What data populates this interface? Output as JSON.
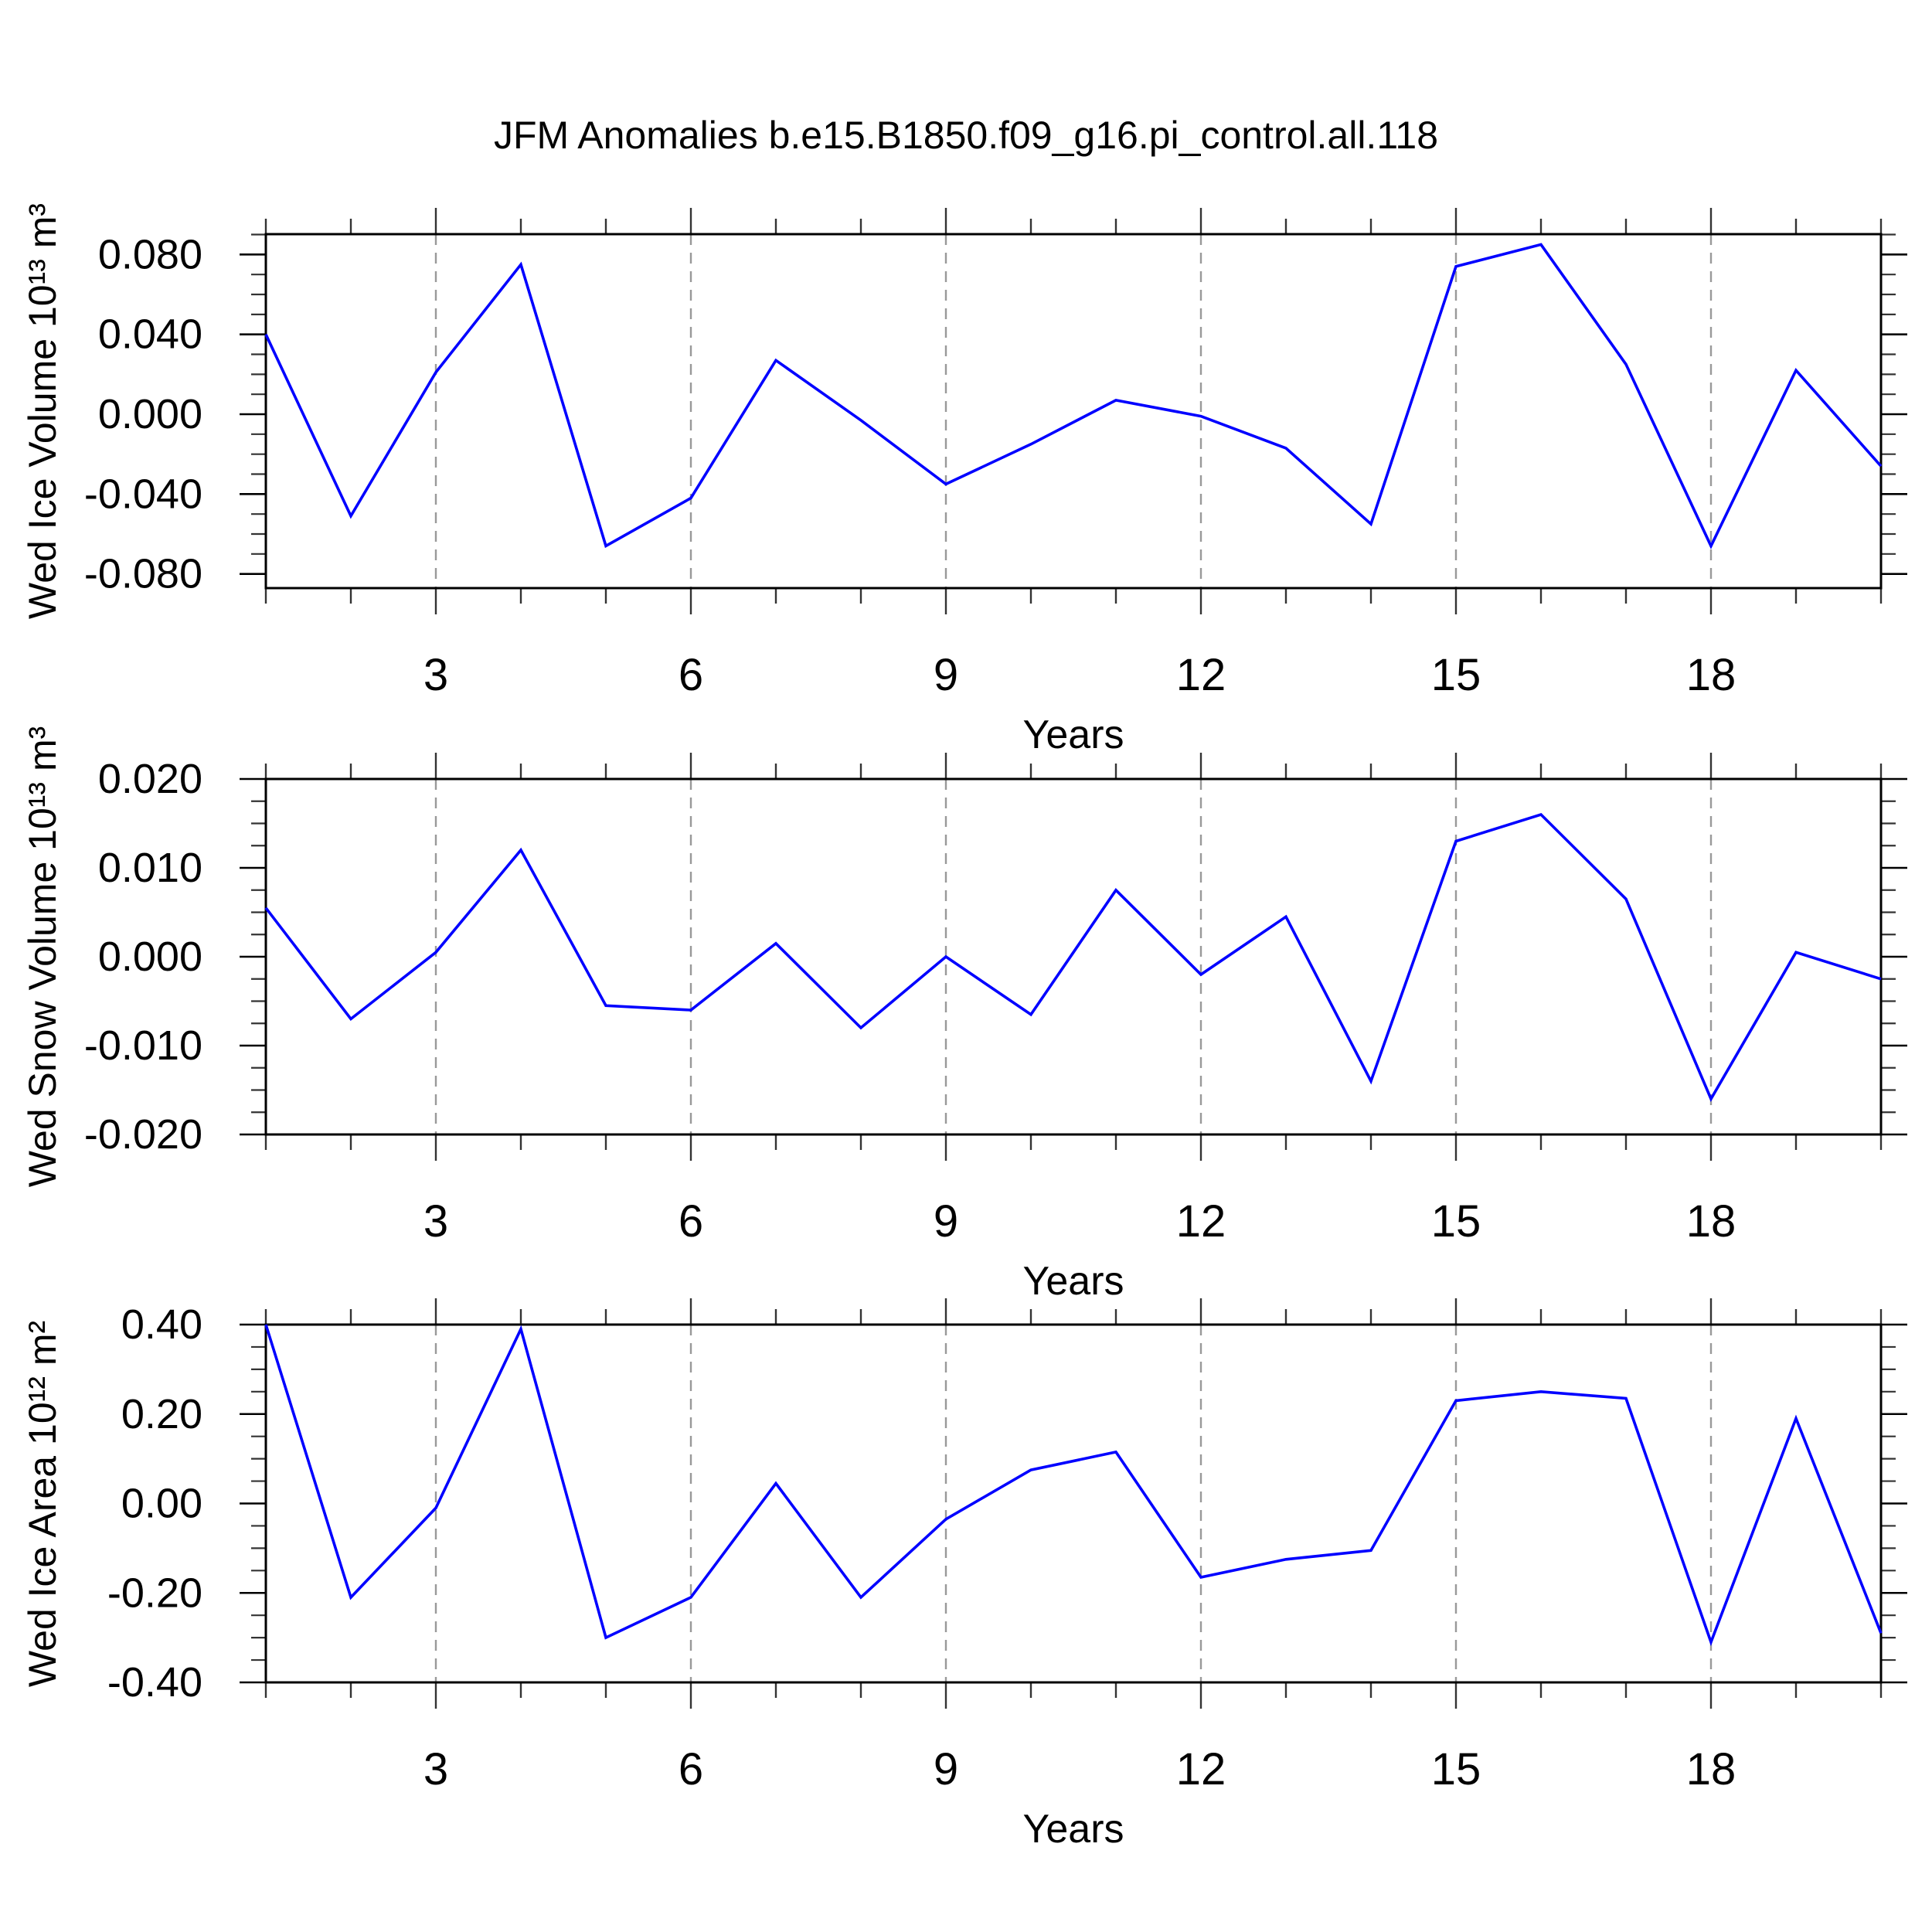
{
  "title": "JFM Anomalies b.e15.B1850.f09_g16.pi_control.all.118",
  "xlabel": "Years",
  "colors": {
    "line": "#0000ff",
    "grid": "#999999",
    "frame": "#000000",
    "tick": "#333333",
    "text": "#000000",
    "background": "#ffffff"
  },
  "chart_data": [
    {
      "type": "line",
      "ylabel": "Wed Ice Volume 10¹³ m³",
      "xlabel": "Years",
      "x": [
        1,
        2,
        3,
        4,
        5,
        6,
        7,
        8,
        9,
        10,
        11,
        12,
        13,
        14,
        15,
        16,
        17,
        18,
        19,
        20
      ],
      "values": [
        0.04,
        -0.051,
        0.021,
        0.075,
        -0.066,
        -0.042,
        0.027,
        -0.003,
        -0.035,
        -0.015,
        0.007,
        -0.001,
        -0.017,
        -0.055,
        0.074,
        0.085,
        0.025,
        -0.066,
        0.022,
        -0.026
      ],
      "ylim": [
        -0.0871,
        0.0902
      ],
      "ytick_values": [
        0.08,
        0.04,
        0.0,
        -0.04,
        -0.08
      ],
      "ytick_labels": [
        "0.080",
        "0.040",
        "0.000",
        "-0.040",
        "-0.080"
      ],
      "yminor_step": 0.01,
      "xtick_major": [
        3,
        6,
        9,
        12,
        15,
        18
      ],
      "grid_x_dashed": [
        3,
        6,
        9,
        12,
        15,
        18
      ],
      "legend": "none",
      "grid": "vertical-dashed-only"
    },
    {
      "type": "line",
      "ylabel": "Wed Snow Volume 10¹³ m³",
      "xlabel": "Years",
      "x": [
        1,
        2,
        3,
        4,
        5,
        6,
        7,
        8,
        9,
        10,
        11,
        12,
        13,
        14,
        15,
        16,
        17,
        18,
        19,
        20
      ],
      "values": [
        0.0055,
        -0.007,
        0.0005,
        0.012,
        -0.0055,
        -0.006,
        0.0015,
        -0.008,
        0.0,
        -0.0065,
        0.0075,
        -0.002,
        0.0045,
        -0.014,
        0.013,
        0.016,
        0.0065,
        -0.016,
        0.0005,
        -0.0025
      ],
      "ylim": [
        -0.02,
        0.02
      ],
      "ytick_values": [
        0.02,
        0.01,
        0.0,
        -0.01,
        -0.02
      ],
      "ytick_labels": [
        "0.020",
        "0.010",
        "0.000",
        "-0.010",
        "-0.020"
      ],
      "yminor_step": 0.0025,
      "xtick_major": [
        3,
        6,
        9,
        12,
        15,
        18
      ],
      "grid_x_dashed": [
        3,
        6,
        9,
        12,
        15,
        18
      ],
      "legend": "none",
      "grid": "vertical-dashed-only"
    },
    {
      "type": "line",
      "ylabel": "Wed Ice Area 10¹² m²",
      "xlabel": "Years",
      "x": [
        1,
        2,
        3,
        4,
        5,
        6,
        7,
        8,
        9,
        10,
        11,
        12,
        13,
        14,
        15,
        16,
        17,
        18,
        19,
        20
      ],
      "values": [
        0.4,
        -0.21,
        -0.01,
        0.39,
        -0.3,
        -0.21,
        0.045,
        -0.21,
        -0.035,
        0.075,
        0.115,
        -0.165,
        -0.125,
        -0.105,
        0.23,
        0.25,
        0.235,
        -0.31,
        0.19,
        -0.29
      ],
      "ylim": [
        -0.4,
        0.4
      ],
      "ytick_values": [
        0.4,
        0.2,
        0.0,
        -0.2,
        -0.4
      ],
      "ytick_labels": [
        "0.40",
        "0.20",
        "0.00",
        "-0.20",
        "-0.40"
      ],
      "yminor_step": 0.05,
      "xtick_major": [
        3,
        6,
        9,
        12,
        15,
        18
      ],
      "grid_x_dashed": [
        3,
        6,
        9,
        12,
        15,
        18
      ],
      "legend": "none",
      "grid": "vertical-dashed-only"
    }
  ]
}
